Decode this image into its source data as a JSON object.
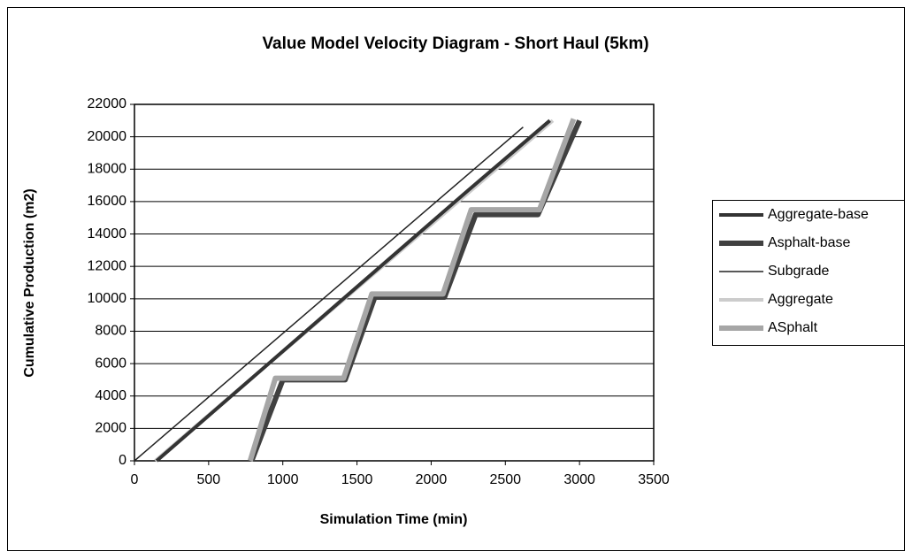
{
  "chart_data": {
    "type": "line",
    "title": "Value Model Velocity Diagram - Short Haul (5km)",
    "x_label": "Simulation Time (min)",
    "y_label": "Cumulative Production (m2)",
    "xlim": [
      0,
      3500
    ],
    "xticks": [
      0,
      500,
      1000,
      1500,
      2000,
      2500,
      3000,
      3500
    ],
    "ylim": [
      0,
      22000
    ],
    "yticks": [
      0,
      2000,
      4000,
      6000,
      8000,
      10000,
      12000,
      14000,
      16000,
      18000,
      20000,
      22000
    ],
    "grid": true,
    "legend": "right",
    "series": [
      {
        "name": "Aggregate-base",
        "color": "#333333",
        "x": [
          150,
          2250,
          2800
        ],
        "values": [
          0,
          16700,
          21000
        ]
      },
      {
        "name": "Asphalt-base",
        "color": "#404040",
        "x": [
          790,
          1000,
          1420,
          1620,
          2090,
          2300,
          2720,
          3000
        ],
        "values": [
          0,
          5000,
          5000,
          10100,
          10100,
          15200,
          15200,
          21000
        ]
      },
      {
        "name": "Subgrade",
        "color": "#222222",
        "x": [
          0,
          2620
        ],
        "values": [
          0,
          20600
        ]
      },
      {
        "name": "Aggregate",
        "color": "#cccccc",
        "x": [
          140,
          2820
        ],
        "values": [
          0,
          21000
        ]
      },
      {
        "name": "ASphalt",
        "color": "#a6a6a6",
        "x": [
          780,
          950,
          1410,
          1600,
          2080,
          2270,
          2730,
          2960
        ],
        "values": [
          0,
          5100,
          5100,
          10300,
          10300,
          15500,
          15500,
          21100
        ]
      }
    ]
  }
}
